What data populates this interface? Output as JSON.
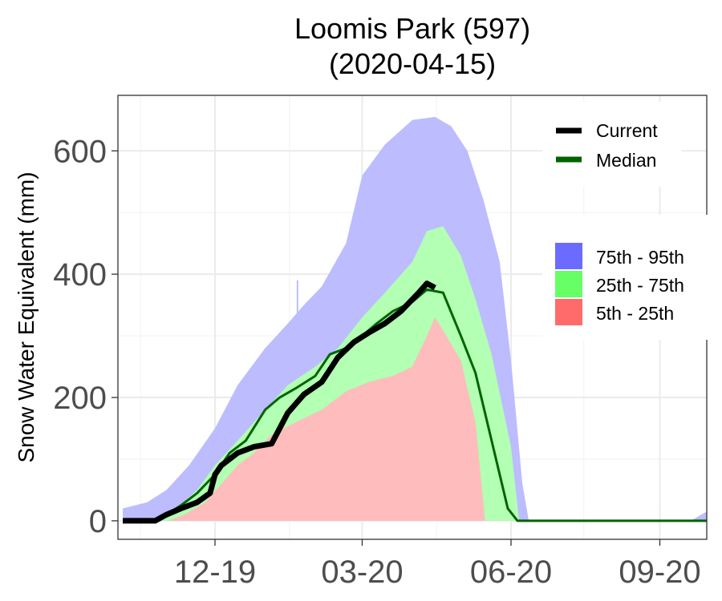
{
  "chart_data": {
    "type": "area",
    "title": "Loomis Park (597)",
    "subtitle": "(2020-04-15)",
    "xlabel": "",
    "ylabel": "Snow Water Equivalent (mm)",
    "ylim": [
      -30,
      690
    ],
    "xlim": [
      "2019-10-02",
      "2020-09-30"
    ],
    "grid": true,
    "y_ticks": [
      0,
      200,
      400,
      600
    ],
    "x_ticks": [
      {
        "date": "2019-12-01",
        "label": "12-19"
      },
      {
        "date": "2020-03-01",
        "label": "03-20"
      },
      {
        "date": "2020-06-01",
        "label": "06-20"
      },
      {
        "date": "2020-09-01",
        "label": "09-20"
      }
    ],
    "x_minor_ticks": [
      "2019-10-16",
      "2020-01-16",
      "2020-04-16",
      "2020-07-16"
    ],
    "legend": {
      "placement": "right",
      "lines": [
        {
          "name": "Current",
          "color": "#000000"
        },
        {
          "name": "Median",
          "color": "#006400"
        }
      ],
      "bands": [
        {
          "name": "75th - 95th",
          "color": "#6b6bff"
        },
        {
          "name": "25th - 75th",
          "color": "#66ff66"
        },
        {
          "name": "5th - 25th",
          "color": "#ff6b6b"
        }
      ]
    },
    "bands": {
      "p5_p25": {
        "color": "#ffbcbc",
        "upper": [
          [
            "2019-11-02",
            0
          ],
          [
            "2019-11-12",
            10
          ],
          [
            "2019-11-25",
            30
          ],
          [
            "2019-12-05",
            60
          ],
          [
            "2019-12-15",
            90
          ],
          [
            "2019-12-25",
            110
          ],
          [
            "2020-01-05",
            140
          ],
          [
            "2020-01-20",
            160
          ],
          [
            "2020-02-05",
            180
          ],
          [
            "2020-02-20",
            210
          ],
          [
            "2020-03-05",
            225
          ],
          [
            "2020-03-20",
            235
          ],
          [
            "2020-04-01",
            250
          ],
          [
            "2020-04-10",
            300
          ],
          [
            "2020-04-15",
            330
          ],
          [
            "2020-04-22",
            300
          ],
          [
            "2020-05-01",
            260
          ],
          [
            "2020-05-10",
            160
          ],
          [
            "2020-05-16",
            0
          ]
        ],
        "lower": [
          [
            "2019-11-02",
            0
          ],
          [
            "2020-05-16",
            0
          ]
        ]
      },
      "p25_p75": {
        "color": "#b3ffb3",
        "upper": [
          [
            "2019-10-25",
            0
          ],
          [
            "2019-11-05",
            15
          ],
          [
            "2019-11-20",
            50
          ],
          [
            "2019-12-01",
            90
          ],
          [
            "2019-12-15",
            130
          ],
          [
            "2020-01-01",
            180
          ],
          [
            "2020-01-15",
            220
          ],
          [
            "2020-02-01",
            250
          ],
          [
            "2020-02-15",
            280
          ],
          [
            "2020-03-01",
            330
          ],
          [
            "2020-03-15",
            370
          ],
          [
            "2020-04-01",
            420
          ],
          [
            "2020-04-10",
            470
          ],
          [
            "2020-04-20",
            478
          ],
          [
            "2020-05-01",
            430
          ],
          [
            "2020-05-10",
            360
          ],
          [
            "2020-05-20",
            270
          ],
          [
            "2020-06-01",
            120
          ],
          [
            "2020-06-06",
            0
          ]
        ]
      },
      "p75_p95": {
        "color": "#bcbcff",
        "upper": [
          [
            "2019-10-05",
            20
          ],
          [
            "2019-10-20",
            30
          ],
          [
            "2019-11-01",
            50
          ],
          [
            "2019-11-15",
            90
          ],
          [
            "2019-12-01",
            150
          ],
          [
            "2019-12-15",
            220
          ],
          [
            "2020-01-01",
            280
          ],
          [
            "2020-01-15",
            320
          ],
          [
            "2020-01-25",
            350
          ],
          [
            "2020-02-05",
            380
          ],
          [
            "2020-02-20",
            450
          ],
          [
            "2020-03-01",
            560
          ],
          [
            "2020-03-15",
            610
          ],
          [
            "2020-04-01",
            650
          ],
          [
            "2020-04-15",
            655
          ],
          [
            "2020-04-25",
            640
          ],
          [
            "2020-05-05",
            600
          ],
          [
            "2020-05-15",
            520
          ],
          [
            "2020-05-25",
            420
          ],
          [
            "2020-06-01",
            260
          ],
          [
            "2020-06-08",
            60
          ],
          [
            "2020-06-12",
            0
          ],
          [
            "2020-09-20",
            0
          ],
          [
            "2020-09-30",
            15
          ]
        ]
      }
    },
    "series": [
      {
        "name": "Current",
        "color": "#000000",
        "points": [
          [
            "2019-10-05",
            0
          ],
          [
            "2019-10-25",
            0
          ],
          [
            "2019-11-01",
            10
          ],
          [
            "2019-11-10",
            20
          ],
          [
            "2019-11-20",
            30
          ],
          [
            "2019-11-28",
            45
          ],
          [
            "2019-12-01",
            75
          ],
          [
            "2019-12-05",
            90
          ],
          [
            "2019-12-15",
            110
          ],
          [
            "2019-12-25",
            120
          ],
          [
            "2020-01-05",
            125
          ],
          [
            "2020-01-15",
            175
          ],
          [
            "2020-01-25",
            205
          ],
          [
            "2020-02-05",
            225
          ],
          [
            "2020-02-15",
            265
          ],
          [
            "2020-02-25",
            290
          ],
          [
            "2020-03-05",
            305
          ],
          [
            "2020-03-15",
            320
          ],
          [
            "2020-03-25",
            340
          ],
          [
            "2020-04-05",
            370
          ],
          [
            "2020-04-10",
            385
          ],
          [
            "2020-04-15",
            378
          ]
        ]
      },
      {
        "name": "Median",
        "color": "#006400",
        "points": [
          [
            "2019-10-25",
            0
          ],
          [
            "2019-11-01",
            10
          ],
          [
            "2019-11-10",
            25
          ],
          [
            "2019-11-20",
            45
          ],
          [
            "2019-12-01",
            75
          ],
          [
            "2019-12-10",
            110
          ],
          [
            "2019-12-20",
            130
          ],
          [
            "2020-01-01",
            180
          ],
          [
            "2020-01-10",
            200
          ],
          [
            "2020-01-20",
            215
          ],
          [
            "2020-02-01",
            235
          ],
          [
            "2020-02-10",
            270
          ],
          [
            "2020-02-20",
            280
          ],
          [
            "2020-03-01",
            300
          ],
          [
            "2020-03-10",
            320
          ],
          [
            "2020-03-20",
            340
          ],
          [
            "2020-04-01",
            355
          ],
          [
            "2020-04-10",
            375
          ],
          [
            "2020-04-20",
            370
          ],
          [
            "2020-05-01",
            300
          ],
          [
            "2020-05-10",
            240
          ],
          [
            "2020-05-20",
            130
          ],
          [
            "2020-05-30",
            20
          ],
          [
            "2020-06-05",
            0
          ],
          [
            "2020-09-30",
            0
          ]
        ]
      }
    ]
  }
}
